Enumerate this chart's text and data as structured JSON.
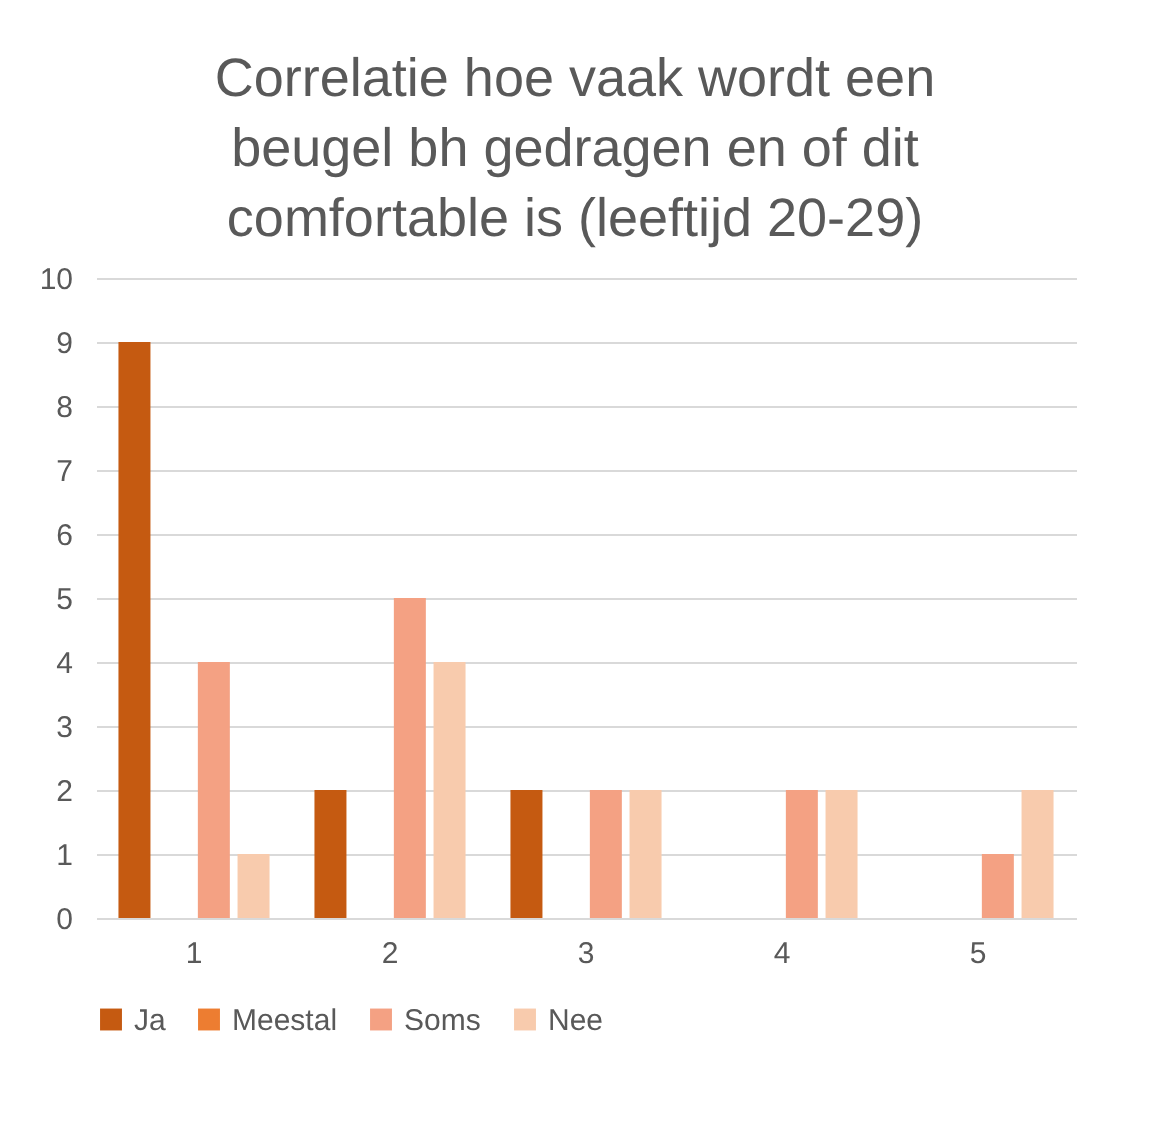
{
  "chart_data": {
    "type": "bar",
    "title": "Correlatie hoe vaak wordt een beugel bh gedragen en of dit comfortable is (leeftijd 20-29)",
    "categories": [
      "1",
      "2",
      "3",
      "4",
      "5"
    ],
    "series": [
      {
        "name": "Ja",
        "color": "#c55a11",
        "values": [
          9,
          2,
          2,
          0,
          0
        ]
      },
      {
        "name": "Meestal",
        "color": "#ed7d31",
        "values": [
          0,
          0,
          0,
          0,
          0
        ]
      },
      {
        "name": "Soms",
        "color": "#f4a183",
        "values": [
          4,
          5,
          2,
          2,
          1
        ]
      },
      {
        "name": "Nee",
        "color": "#f8cbad",
        "values": [
          1,
          4,
          2,
          2,
          2
        ]
      }
    ],
    "ylim": [
      0,
      10
    ],
    "yticks": [
      0,
      1,
      2,
      3,
      4,
      5,
      6,
      7,
      8,
      9,
      10
    ],
    "grid": "y",
    "legend": "bottom"
  }
}
